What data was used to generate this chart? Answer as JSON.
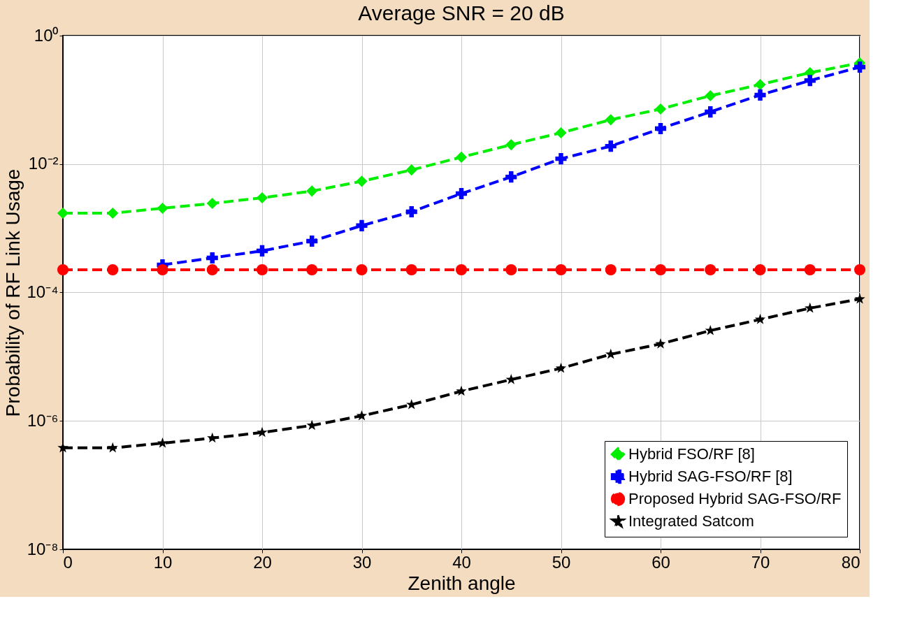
{
  "chart_data": {
    "type": "line",
    "title": "Average SNR = 20 dB",
    "xlabel": "Zenith angle",
    "ylabel": "Probability of  RF Link  Usage",
    "x": [
      0,
      5,
      10,
      15,
      20,
      25,
      30,
      35,
      40,
      45,
      50,
      55,
      60,
      65,
      70,
      75,
      80
    ],
    "series": [
      {
        "name": "Hybrid FSO/RF [8]",
        "color": "#00ee00",
        "marker": "diamond",
        "values": [
          0.00172,
          0.00172,
          0.00205,
          0.00244,
          0.00298,
          0.0038,
          0.0054,
          0.0081,
          0.0128,
          0.02,
          0.0307,
          0.049,
          0.072,
          0.116,
          0.173,
          0.265,
          0.376
        ]
      },
      {
        "name": "Hybrid SAG-FSO/RF [8]",
        "color": "#0000ff",
        "marker": "cross",
        "values": [
          null,
          null,
          0.000269,
          0.000346,
          0.000445,
          0.00063,
          0.0011,
          0.00181,
          0.00347,
          0.0063,
          0.0121,
          0.019,
          0.0357,
          0.065,
          0.119,
          0.2,
          0.324
        ]
      },
      {
        "name": "Proposed Hybrid SAG-FSO/RF",
        "color": "#ff0000",
        "marker": "circle",
        "values": [
          0.000226,
          0.000226,
          0.000226,
          0.000226,
          0.000226,
          0.000226,
          0.000226,
          0.000226,
          0.000226,
          0.000226,
          0.000226,
          0.000226,
          0.000226,
          0.000226,
          0.000226,
          0.000226,
          0.000226
        ]
      },
      {
        "name": "Integrated Satcom",
        "color": "#000000",
        "marker": "star",
        "values": [
          3.8e-07,
          3.8e-07,
          4.5e-07,
          5.4e-07,
          6.6e-07,
          8.5e-07,
          1.2e-06,
          1.79e-06,
          2.9e-06,
          4.4e-06,
          6.6e-06,
          1.09e-05,
          1.58e-05,
          2.55e-05,
          3.8e-05,
          5.7e-05,
          7.9e-05
        ]
      }
    ],
    "xlim": [
      0,
      80
    ],
    "xticks": [
      0,
      10,
      20,
      30,
      40,
      50,
      60,
      70,
      80
    ],
    "ylim": [
      1e-08,
      1
    ],
    "yticks": [
      {
        "value": 1e-08,
        "label": "10⁻⁸"
      },
      {
        "value": 1e-06,
        "label": "10⁻⁶"
      },
      {
        "value": 0.0001,
        "label": "10⁻⁴"
      },
      {
        "value": 0.01,
        "label": "10⁻²"
      },
      {
        "value": 1,
        "label": "10⁰"
      }
    ],
    "log": "y",
    "grid": true,
    "legend": "bottom right",
    "line_style": "dashed"
  }
}
